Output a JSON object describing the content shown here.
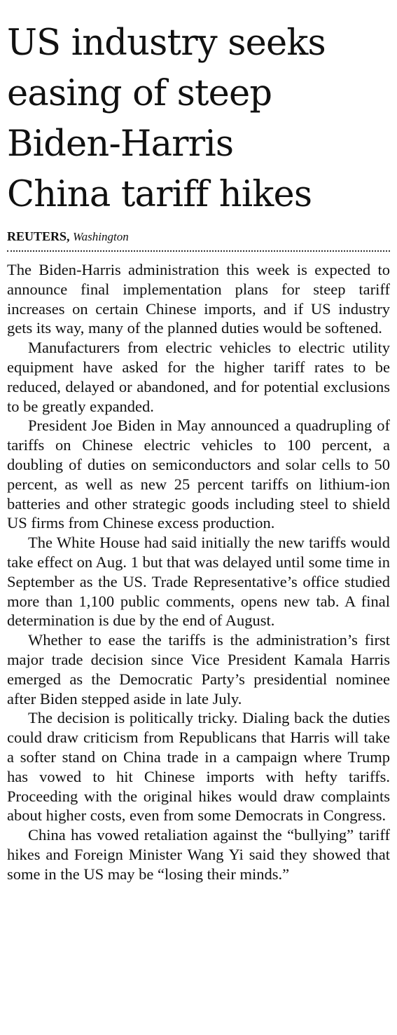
{
  "article": {
    "headline": "US industry seeks\neasing of steep\nBiden-Harris\nChina tariff hikes",
    "byline": {
      "agency": "REUTERS,",
      "location": "Washington"
    },
    "paragraphs": [
      "The Biden-Harris administration this week is expected to announce final implementation plans for steep tariff increases on certain Chinese imports, and if US industry gets its way, many of the planned duties would be softened.",
      "Manufacturers from electric vehicles to electric utility equipment have asked for the higher tariff rates to be reduced, delayed or abandoned, and for potential exclusions to be greatly expanded.",
      "President Joe Biden in May announced a quadrupling of tariffs on Chinese electric vehicles to 100 percent, a doubling of duties on semiconductors and solar cells to 50 percent, as well as new 25 percent tariffs on lithium-ion batteries and other strategic goods including steel to shield US firms from Chinese excess production.",
      "The White House had said initially the new tariffs would take effect on Aug. 1 but that was delayed until some time in September as the US. Trade Representative’s office studied more than 1,100 public comments, opens new tab. A final determination is due by the end of August.",
      "Whether to ease the tariffs is the administration’s first major trade decision since Vice President Kamala Harris emerged as the Democratic Party’s presidential nominee after Biden stepped aside in late July.",
      "The decision is politically tricky. Dialing back the duties could draw criticism from Republicans that Harris will take a softer stand on China trade in a campaign where Trump has vowed to hit Chinese imports with hefty tariffs. Proceeding with the original hikes would draw complaints about higher costs, even from some Democrats in Congress.",
      "China has vowed retaliation against the “bullying” tariff hikes and Foreign Minister Wang Yi said they showed that some in the US may be “losing their minds.”"
    ]
  }
}
